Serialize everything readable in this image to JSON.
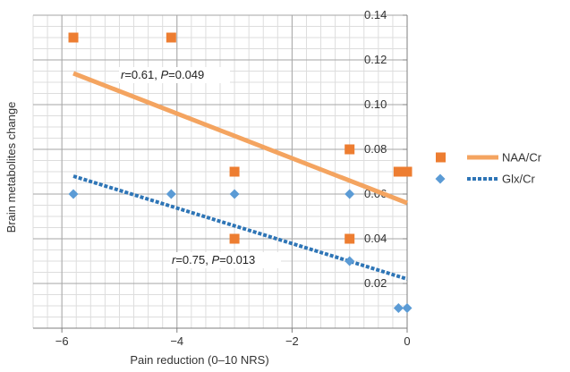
{
  "chart_data": {
    "type": "scatter",
    "xlabel": "Pain reduction (0–10 NRS)",
    "ylabel": "Brain metabolites change",
    "xlim": [
      -6.5,
      0
    ],
    "ylim": [
      0,
      0.14
    ],
    "x_ticks": [
      -6,
      -4,
      -2,
      0
    ],
    "y_ticks": [
      0.02,
      0.04,
      0.06,
      0.08,
      0.1,
      0.12,
      0.14
    ],
    "x_tick_labels": [
      "−6",
      "−4",
      "−2",
      "0"
    ],
    "y_tick_labels": [
      "0.02",
      "0.04",
      "0.06",
      "0.08",
      "0.10",
      "0.12",
      "0.14"
    ],
    "grid": true,
    "legend_position": "right",
    "series": [
      {
        "name": "NAA/Cr",
        "marker": "square",
        "color": "#ED7D31",
        "points": [
          {
            "x": -5.8,
            "y": 0.13
          },
          {
            "x": -4.1,
            "y": 0.13
          },
          {
            "x": -3.0,
            "y": 0.07
          },
          {
            "x": -3.0,
            "y": 0.04
          },
          {
            "x": -1.0,
            "y": 0.08
          },
          {
            "x": -1.0,
            "y": 0.04
          },
          {
            "x": -0.15,
            "y": 0.07
          },
          {
            "x": 0.0,
            "y": 0.07
          }
        ],
        "trendline": {
          "x1": -5.8,
          "y1": 0.114,
          "x2": 0.0,
          "y2": 0.056,
          "style": "solid",
          "color": "#F4A460"
        },
        "annotation": {
          "r": "r",
          "text": "=0.61, ",
          "p": "P",
          "ptext": "=0.049"
        }
      },
      {
        "name": "Glx/Cr",
        "marker": "diamond",
        "color": "#5B9BD5",
        "points": [
          {
            "x": -5.8,
            "y": 0.06
          },
          {
            "x": -4.1,
            "y": 0.06
          },
          {
            "x": -3.0,
            "y": 0.06
          },
          {
            "x": -1.0,
            "y": 0.06
          },
          {
            "x": -1.0,
            "y": 0.03
          },
          {
            "x": -0.15,
            "y": 0.009
          },
          {
            "x": 0.0,
            "y": 0.009
          }
        ],
        "trendline": {
          "x1": -5.8,
          "y1": 0.068,
          "x2": 0.0,
          "y2": 0.022,
          "style": "dotted",
          "color": "#2E75B6"
        },
        "annotation": {
          "r": "r",
          "text": "=0.75, ",
          "p": "P",
          "ptext": "=0.013"
        }
      }
    ]
  }
}
